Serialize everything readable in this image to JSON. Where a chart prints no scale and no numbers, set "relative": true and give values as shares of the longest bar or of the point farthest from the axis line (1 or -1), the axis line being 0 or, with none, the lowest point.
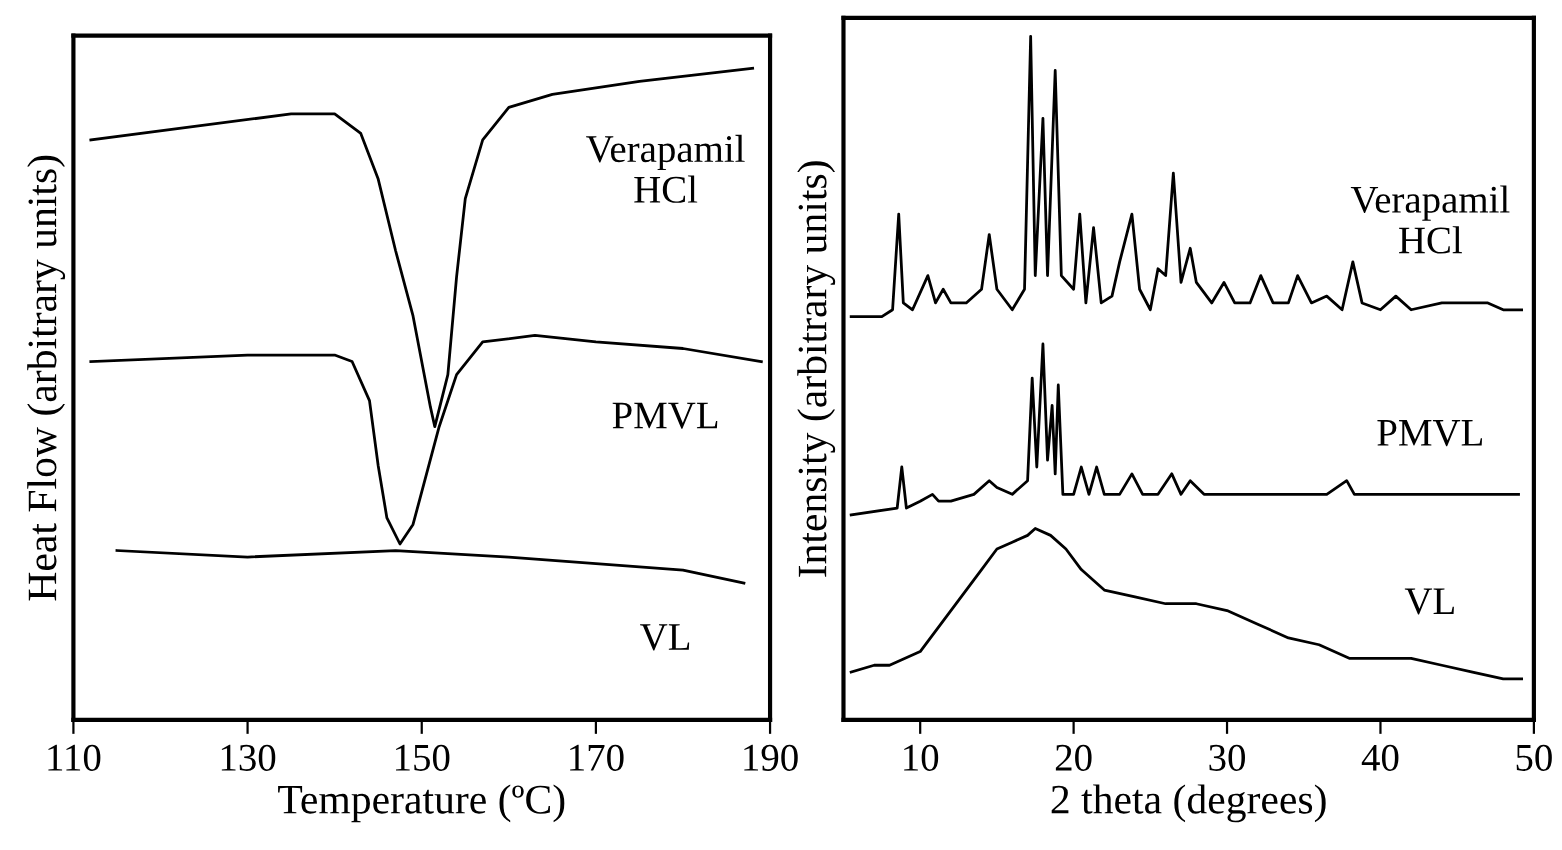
{
  "chart_data": [
    {
      "type": "line",
      "relative": true,
      "xlabel": "Temperature (ºC)",
      "ylabel": "Heat Flow (arbitrary units)",
      "xlim": [
        110,
        190
      ],
      "xticks": [
        110,
        130,
        150,
        170,
        190
      ],
      "tick_labels": "x",
      "grid": false,
      "legend": false,
      "marker": "none",
      "line_style": "solid",
      "series": [
        {
          "name": "Verapamil\nHCl",
          "color": "#000000",
          "x": [
            112,
            135,
            140,
            143,
            145,
            147,
            149,
            151,
            151.5,
            153,
            154,
            155,
            157,
            160,
            165,
            175,
            188
          ],
          "values": [
            0.89,
            0.93,
            0.93,
            0.9,
            0.83,
            0.72,
            0.62,
            0.48,
            0.45,
            0.53,
            0.68,
            0.8,
            0.89,
            0.94,
            0.96,
            0.98,
            1.0
          ]
        },
        {
          "name": "PMVL",
          "color": "#000000",
          "x": [
            112,
            130,
            140,
            142,
            144,
            145,
            146,
            147.5,
            149,
            150,
            152,
            154,
            157,
            163,
            170,
            180,
            189
          ],
          "values": [
            0.55,
            0.56,
            0.56,
            0.55,
            0.49,
            0.39,
            0.31,
            0.27,
            0.3,
            0.35,
            0.45,
            0.53,
            0.58,
            0.59,
            0.58,
            0.57,
            0.55
          ]
        },
        {
          "name": "VL",
          "color": "#000000",
          "x": [
            115,
            130,
            147,
            160,
            170,
            180,
            187
          ],
          "values": [
            0.26,
            0.25,
            0.26,
            0.25,
            0.24,
            0.23,
            0.21
          ]
        }
      ]
    },
    {
      "type": "line",
      "relative": true,
      "xlabel": "2 theta (degrees)",
      "ylabel": "Intensity (arbitrary units)",
      "xlim": [
        5,
        50
      ],
      "xticks": [
        10,
        20,
        30,
        40,
        50
      ],
      "tick_labels": "x",
      "grid": false,
      "legend": false,
      "marker": "none",
      "line_style": "solid",
      "series": [
        {
          "name": "Verapamil\nHCl",
          "color": "#000000",
          "x": [
            5.5,
            7.5,
            8.2,
            8.6,
            8.9,
            9.5,
            10.5,
            11,
            11.5,
            12,
            13,
            14,
            14.5,
            15,
            16,
            16.8,
            17.2,
            17.5,
            18,
            18.3,
            18.8,
            19.2,
            20,
            20.4,
            20.8,
            21.3,
            21.8,
            22.5,
            23,
            23.8,
            24.3,
            25,
            25.5,
            26,
            26.5,
            27,
            27.6,
            28,
            29,
            29.8,
            30.5,
            31.5,
            32.2,
            33,
            34,
            34.6,
            35.5,
            36.5,
            37.5,
            38.2,
            38.8,
            40,
            41,
            42,
            44,
            46,
            47,
            48,
            49.2
          ],
          "values": [
            0.59,
            0.59,
            0.6,
            0.74,
            0.61,
            0.6,
            0.65,
            0.61,
            0.63,
            0.61,
            0.61,
            0.63,
            0.71,
            0.63,
            0.6,
            0.63,
            1.0,
            0.65,
            0.88,
            0.65,
            0.95,
            0.65,
            0.63,
            0.74,
            0.61,
            0.72,
            0.61,
            0.62,
            0.67,
            0.74,
            0.63,
            0.6,
            0.66,
            0.65,
            0.8,
            0.64,
            0.69,
            0.64,
            0.61,
            0.64,
            0.61,
            0.61,
            0.65,
            0.61,
            0.61,
            0.65,
            0.61,
            0.62,
            0.6,
            0.67,
            0.61,
            0.6,
            0.62,
            0.6,
            0.61,
            0.61,
            0.61,
            0.6,
            0.6
          ]
        },
        {
          "name": "PMVL",
          "color": "#000000",
          "x": [
            5.5,
            8.5,
            8.8,
            9.1,
            10,
            10.8,
            11.2,
            12,
            13.5,
            14.5,
            15,
            16,
            17,
            17.3,
            17.6,
            18,
            18.3,
            18.6,
            18.8,
            19,
            19.3,
            20,
            20.5,
            21,
            21.5,
            22,
            23,
            23.8,
            24.5,
            25.5,
            26.4,
            27,
            27.6,
            28.5,
            30,
            32,
            34.5,
            36.5,
            37.8,
            38.3,
            41,
            45,
            49
          ],
          "values": [
            0.3,
            0.31,
            0.37,
            0.31,
            0.32,
            0.33,
            0.32,
            0.32,
            0.33,
            0.35,
            0.34,
            0.33,
            0.35,
            0.5,
            0.37,
            0.55,
            0.38,
            0.46,
            0.36,
            0.49,
            0.33,
            0.33,
            0.37,
            0.33,
            0.37,
            0.33,
            0.33,
            0.36,
            0.33,
            0.33,
            0.36,
            0.33,
            0.35,
            0.33,
            0.33,
            0.33,
            0.33,
            0.33,
            0.35,
            0.33,
            0.33,
            0.33,
            0.33
          ]
        },
        {
          "name": "VL",
          "color": "#000000",
          "x": [
            5.5,
            7,
            8,
            10,
            12,
            13,
            14,
            15,
            16,
            17,
            17.5,
            18.5,
            19.5,
            20.5,
            22,
            24,
            26,
            28,
            30,
            32,
            34,
            36,
            38,
            40,
            42,
            44,
            46,
            48,
            49.2
          ],
          "values": [
            0.07,
            0.08,
            0.08,
            0.1,
            0.16,
            0.19,
            0.22,
            0.25,
            0.26,
            0.27,
            0.28,
            0.27,
            0.25,
            0.22,
            0.19,
            0.18,
            0.17,
            0.17,
            0.16,
            0.14,
            0.12,
            0.11,
            0.09,
            0.09,
            0.09,
            0.08,
            0.07,
            0.06,
            0.06
          ]
        }
      ]
    }
  ]
}
